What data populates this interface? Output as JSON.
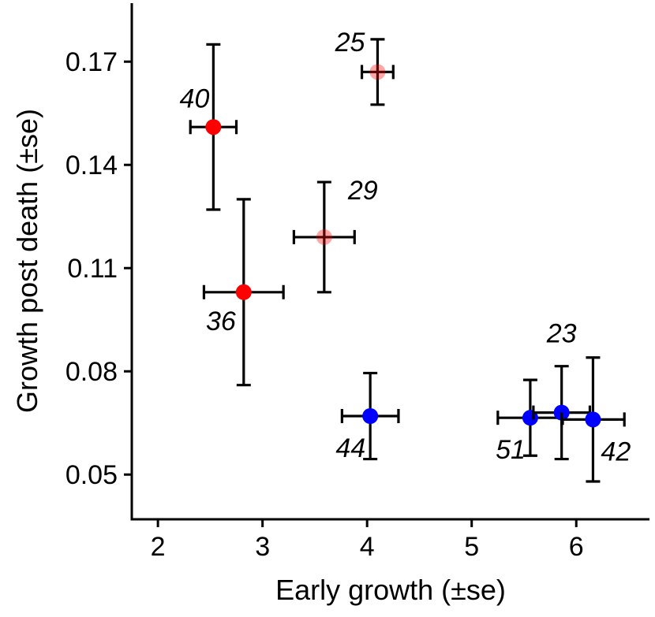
{
  "chart_data": {
    "type": "scatter",
    "title": "",
    "xlabel": "Early growth (±se)",
    "ylabel": "Growth post death (±se)",
    "xlim": [
      1.75,
      6.7
    ],
    "ylim": [
      0.037,
      0.187
    ],
    "x_ticks": [
      2,
      3,
      4,
      5,
      6
    ],
    "x_tick_labels": [
      "2",
      "3",
      "4",
      "5",
      "6"
    ],
    "y_ticks": [
      0.05,
      0.08,
      0.11,
      0.14,
      0.17
    ],
    "y_tick_labels": [
      "0.05",
      "0.08",
      "0.11",
      "0.14",
      "0.17"
    ],
    "grid": false,
    "legend": "none",
    "points": [
      {
        "label": "40",
        "x": 2.53,
        "y": 0.151,
        "x_se": 0.22,
        "y_se": 0.024,
        "color": "#ff0000",
        "opacity": 1.0,
        "label_pos": "above-left"
      },
      {
        "label": "25",
        "x": 4.1,
        "y": 0.167,
        "x_se": 0.15,
        "y_se": 0.0095,
        "color": "#ff0000",
        "opacity": 0.35,
        "label_pos": "above-left"
      },
      {
        "label": "29",
        "x": 3.59,
        "y": 0.119,
        "x_se": 0.29,
        "y_se": 0.016,
        "color": "#ff0000",
        "opacity": 0.35,
        "label_pos": "above-right"
      },
      {
        "label": "36",
        "x": 2.82,
        "y": 0.103,
        "x_se": 0.38,
        "y_se": 0.027,
        "color": "#ff0000",
        "opacity": 1.0,
        "label_pos": "below-left"
      },
      {
        "label": "44",
        "x": 4.03,
        "y": 0.067,
        "x_se": 0.27,
        "y_se": 0.0125,
        "color": "#0000ff",
        "opacity": 1.0,
        "label_pos": "below-left"
      },
      {
        "label": "51",
        "x": 5.56,
        "y": 0.0665,
        "x_se": 0.31,
        "y_se": 0.011,
        "color": "#0000ff",
        "opacity": 1.0,
        "label_pos": "below-left"
      },
      {
        "label": "23",
        "x": 5.86,
        "y": 0.068,
        "x_se": 0.27,
        "y_se": 0.0135,
        "color": "#0000ff",
        "opacity": 1.0,
        "label_pos": "above"
      },
      {
        "label": "42",
        "x": 6.16,
        "y": 0.066,
        "x_se": 0.3,
        "y_se": 0.018,
        "color": "#0000ff",
        "opacity": 1.0,
        "label_pos": "below-right"
      }
    ]
  }
}
